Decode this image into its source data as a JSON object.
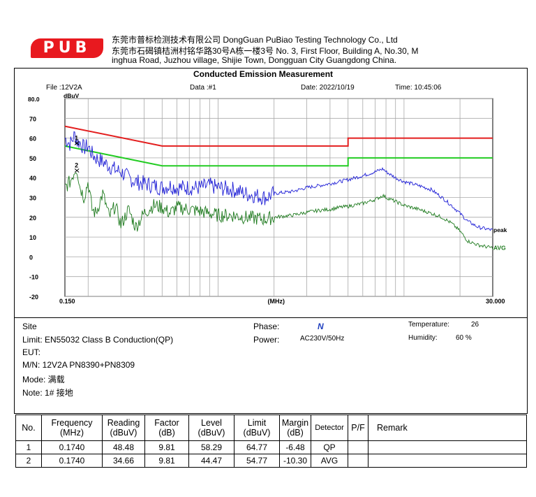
{
  "header": {
    "logo_text": "PUB",
    "line1": "东莞市普标检测技术有限公司 DongGuan PuBiao Testing Technology Co., Ltd",
    "line2": "东莞市石碣镇桔洲村铭华路30号A栋一楼3号 No. 3, First Floor, Building A, No.30, M",
    "line3": "inghua Road, Juzhou village, Shijie Town, Dongguan City Guangdong China."
  },
  "report": {
    "title": "Conducted Emission Measurement",
    "file": "File :12V2A",
    "data": "Data :#1",
    "date": "Date: 2022/10/19",
    "time": "Time: 10:45:06"
  },
  "info": {
    "site": "Site",
    "limit": "Limit:  EN55032 Class B Conduction(QP)",
    "eut": "EUT:",
    "mn": "M/N:  12V2A PN8390+PN8309",
    "mode": "Mode:  满载",
    "note": "Note:  1# 接地",
    "phase_label": "Phase:",
    "phase_value": "N",
    "power_label": "Power:",
    "power_value": "AC230V/50Hz",
    "temp_label": "Temperature:",
    "temp_value": "26",
    "hum_label": "Humidity:",
    "hum_value": "60 %"
  },
  "table": {
    "headers": [
      "No.",
      "Frequency\n(MHz)",
      "Reading\n(dBuV)",
      "Factor\n(dB)",
      "Level\n(dBuV)",
      "Limit\n(dBuV)",
      "Margin\n(dB)",
      "Detector",
      "P/F",
      "Remark"
    ],
    "rows": [
      [
        "1",
        "0.1740",
        "48.48",
        "9.81",
        "58.29",
        "64.77",
        "-6.48",
        "QP",
        "",
        ""
      ],
      [
        "2",
        "0.1740",
        "34.66",
        "9.81",
        "44.47",
        "54.77",
        "-10.30",
        "AVG",
        "",
        ""
      ]
    ]
  },
  "chart_data": {
    "type": "line",
    "title": "Conducted Emission Measurement",
    "xlabel": "(MHz)",
    "ylabel": "dBuV",
    "x_scale": "log",
    "xlim": [
      0.15,
      30.0
    ],
    "ylim": [
      -20,
      80
    ],
    "x_tick_labels": [
      "0.150",
      "(MHz)",
      "30.000"
    ],
    "y_ticks": [
      80,
      70,
      60,
      50,
      40,
      30,
      20,
      10,
      0,
      -10,
      -20
    ],
    "y_top_label": "80.0",
    "grid": true,
    "colors": {
      "limit_qp": "#e31e1e",
      "limit_avg": "#22cc22",
      "peak": "#1f1fd6",
      "avg": "#1e7a1e",
      "grid": "#a8a8a8"
    },
    "series": [
      {
        "name": "",
        "color": "#e31e1e",
        "x": [
          0.15,
          0.5,
          5,
          5,
          30
        ],
        "y": [
          66,
          56,
          56,
          60,
          60
        ]
      },
      {
        "name": "",
        "color": "#22cc22",
        "x": [
          0.15,
          0.5,
          5,
          5,
          30
        ],
        "y": [
          56,
          46,
          46,
          50,
          50
        ]
      },
      {
        "name": "peak",
        "color": "#1f1fd6",
        "x": [
          0.15,
          0.16,
          0.17,
          0.174,
          0.18,
          0.19,
          0.2,
          0.21,
          0.22,
          0.24,
          0.26,
          0.28,
          0.3,
          0.33,
          0.36,
          0.4,
          0.45,
          0.5,
          0.55,
          0.6,
          0.7,
          0.8,
          0.9,
          1.0,
          1.2,
          1.4,
          1.6,
          1.8,
          2.0,
          2.5,
          3.0,
          3.5,
          4.0,
          4.5,
          5.0,
          6.0,
          7.0,
          7.7,
          8.0,
          9.0,
          10,
          12,
          14,
          16,
          18,
          20,
          22,
          25,
          28,
          30
        ],
        "y": [
          60,
          57,
          62,
          58,
          58,
          55,
          56,
          52,
          50,
          48,
          46,
          44,
          43,
          40,
          38,
          37,
          36,
          35,
          36,
          35,
          35,
          35,
          36,
          35,
          34,
          32,
          31,
          30,
          32,
          33,
          35,
          36,
          37,
          38,
          39,
          41,
          43,
          44.5,
          43,
          40,
          38,
          36,
          34,
          30,
          26,
          22,
          18,
          15,
          14,
          13.5
        ]
      },
      {
        "name": "AVG",
        "color": "#1e7a1e",
        "x": [
          0.15,
          0.16,
          0.17,
          0.174,
          0.18,
          0.19,
          0.2,
          0.21,
          0.22,
          0.24,
          0.26,
          0.28,
          0.3,
          0.33,
          0.36,
          0.4,
          0.45,
          0.5,
          0.55,
          0.6,
          0.7,
          0.8,
          0.9,
          1.0,
          1.2,
          1.4,
          1.6,
          1.8,
          2.0,
          2.5,
          3.0,
          3.5,
          4.0,
          4.5,
          5.0,
          6.0,
          7.0,
          7.7,
          8.0,
          9.0,
          10,
          12,
          14,
          16,
          18,
          20,
          22,
          25,
          28,
          30
        ],
        "y": [
          35,
          38,
          44,
          45,
          36,
          30,
          38,
          24,
          22,
          32,
          20,
          26,
          16,
          24,
          15,
          22,
          26,
          25,
          22,
          25,
          24,
          23,
          22,
          21,
          21,
          20,
          19.5,
          19,
          20,
          21,
          22.5,
          23.5,
          24,
          25,
          25.5,
          27,
          29,
          31,
          30,
          28,
          26,
          24,
          22,
          20,
          17,
          13,
          8,
          6,
          5,
          4.5
        ]
      }
    ],
    "markers": [
      {
        "label": "1",
        "x": 0.174,
        "y": 58.29
      },
      {
        "label": "2",
        "x": 0.174,
        "y": 44.47
      }
    ]
  }
}
